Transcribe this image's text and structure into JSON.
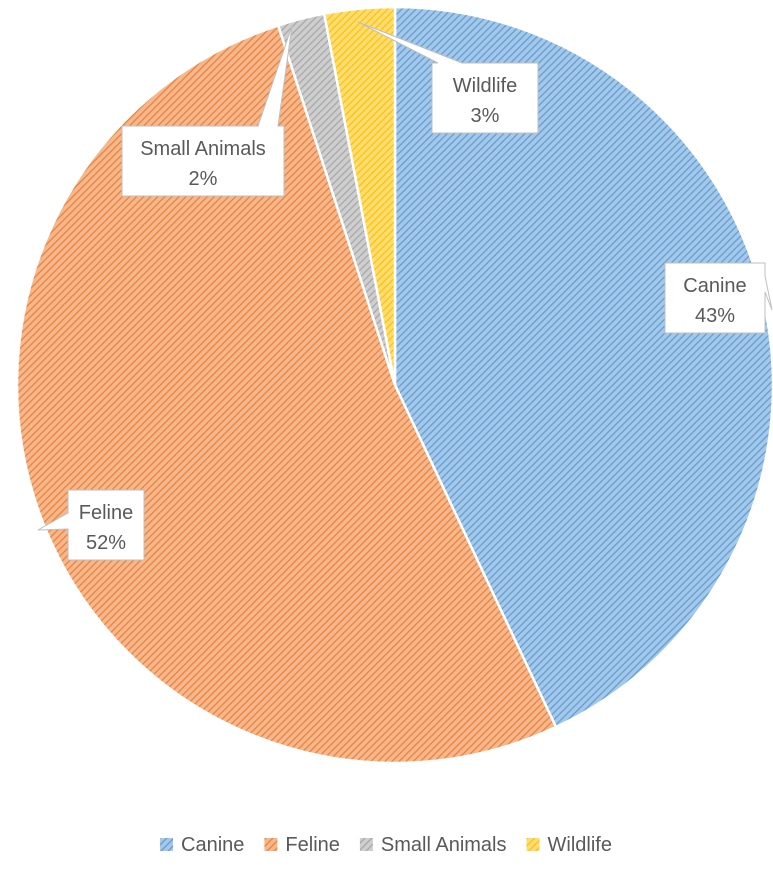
{
  "chart_data": {
    "type": "pie",
    "categories": [
      "Canine",
      "Feline",
      "Small Animals",
      "Wildlife"
    ],
    "values": [
      43,
      52,
      2,
      3
    ],
    "data_labels": [
      {
        "name": "Canine",
        "percent": "43%"
      },
      {
        "name": "Feline",
        "percent": "52%"
      },
      {
        "name": "Small Animals",
        "percent": "2%"
      },
      {
        "name": "Wildlife",
        "percent": "3%"
      }
    ],
    "fill_pattern": "diagonal-hatch",
    "legend_position": "bottom",
    "start_angle": "12 o'clock, clockwise",
    "colors": [
      "#5B9BD5",
      "#ED7D31",
      "#A5A5A5",
      "#FFC000"
    ]
  }
}
